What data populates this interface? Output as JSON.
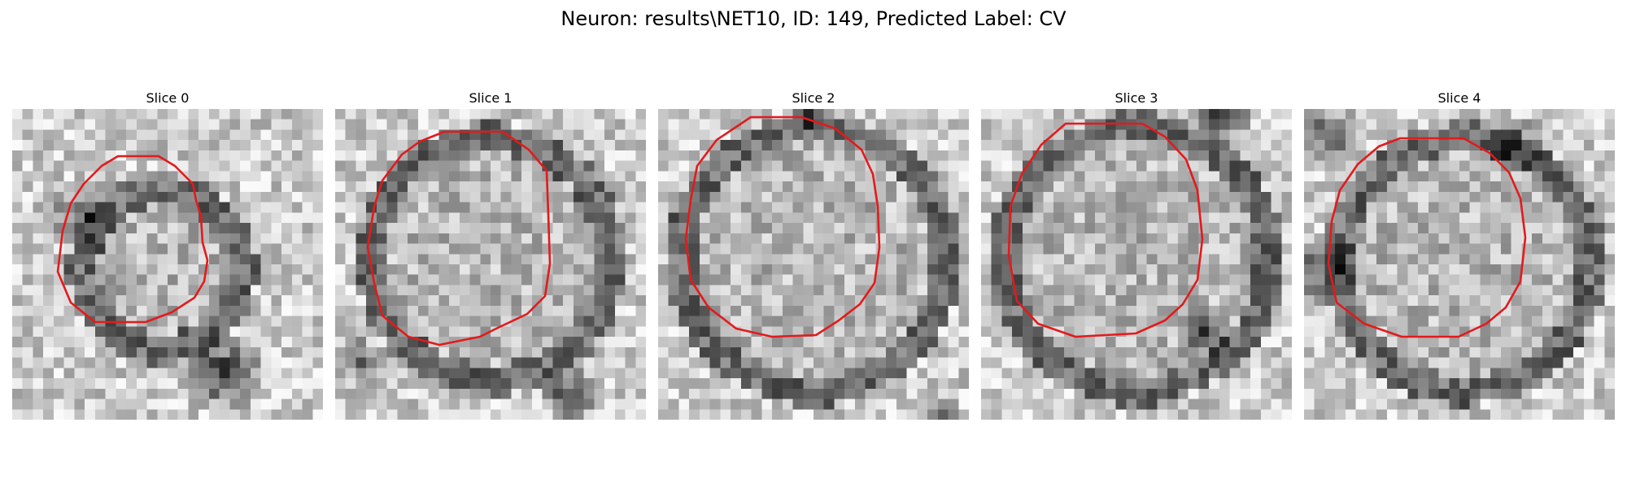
{
  "figure": {
    "title": "Neuron: results\\NET10, ID: 149, Predicted Label: CV"
  },
  "panels": [
    {
      "title": "Slice 0"
    },
    {
      "title": "Slice 1"
    },
    {
      "title": "Slice 2"
    },
    {
      "title": "Slice 3"
    },
    {
      "title": "Slice 4"
    }
  ],
  "colors": {
    "contour": "#e31a1c",
    "background": "#ffffff"
  }
}
